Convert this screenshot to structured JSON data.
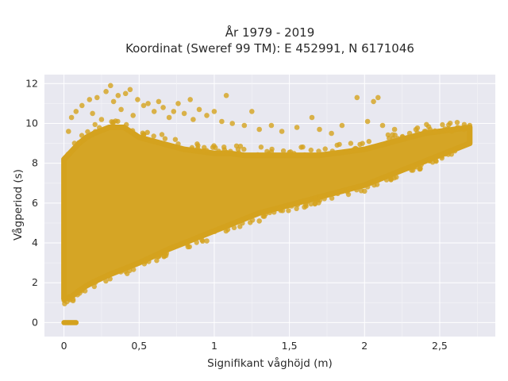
{
  "chart_data": {
    "type": "scatter",
    "title_lines": [
      "År 1979 - 2019",
      "Koordinat (Sweref 99 TM): E 452991, N 6171046"
    ],
    "xlabel": "Signifikant våghöjd (m)",
    "ylabel": "Vågperiod (s)",
    "xlim": [
      -0.13,
      2.87
    ],
    "ylim": [
      -0.7,
      12.45
    ],
    "x_ticks": [
      {
        "value": 0,
        "label": "0"
      },
      {
        "value": 0.5,
        "label": "0,5"
      },
      {
        "value": 1,
        "label": "1"
      },
      {
        "value": 1.5,
        "label": "1,5"
      },
      {
        "value": 2,
        "label": "2"
      },
      {
        "value": 2.5,
        "label": "2,5"
      }
    ],
    "y_ticks": [
      {
        "value": 0,
        "label": "0"
      },
      {
        "value": 2,
        "label": "2"
      },
      {
        "value": 4,
        "label": "4"
      },
      {
        "value": 6,
        "label": "6"
      },
      {
        "value": 8,
        "label": "8"
      },
      {
        "value": 10,
        "label": "10"
      },
      {
        "value": 12,
        "label": "12"
      }
    ],
    "grid": true,
    "marker_color": "#D4A21E",
    "plot_background": "#E8E8F0",
    "envelope": {
      "x": [
        0.0,
        0.05,
        0.1,
        0.15,
        0.2,
        0.3,
        0.4,
        0.5,
        0.6,
        0.7,
        0.8,
        0.9,
        1.0,
        1.1,
        1.2,
        1.3,
        1.4,
        1.5,
        1.6,
        1.7,
        1.8,
        1.9,
        2.0,
        2.1,
        2.2,
        2.3,
        2.4,
        2.5,
        2.6,
        2.7
      ],
      "y_lower": [
        1.2,
        1.3,
        1.6,
        1.85,
        2.05,
        2.4,
        2.7,
        3.0,
        3.35,
        3.7,
        4.0,
        4.3,
        4.6,
        4.9,
        5.2,
        5.5,
        5.7,
        5.9,
        6.1,
        6.3,
        6.5,
        6.7,
        6.9,
        7.2,
        7.5,
        7.8,
        8.1,
        8.4,
        8.7,
        9.0
      ],
      "y_upper": [
        8.2,
        8.6,
        9.0,
        9.3,
        9.5,
        9.8,
        9.8,
        9.3,
        9.1,
        8.9,
        8.7,
        8.6,
        8.5,
        8.5,
        8.4,
        8.4,
        8.4,
        8.4,
        8.4,
        8.4,
        8.5,
        8.6,
        8.7,
        8.9,
        9.1,
        9.3,
        9.5,
        9.6,
        9.7,
        9.8
      ]
    },
    "zero_period_points": {
      "x": [
        0.0,
        0.01,
        0.02,
        0.03,
        0.04,
        0.05,
        0.06,
        0.07,
        0.08
      ],
      "y": 0
    },
    "outliers": [
      {
        "x": 0.03,
        "y": 9.6
      },
      {
        "x": 0.05,
        "y": 10.3
      },
      {
        "x": 0.08,
        "y": 10.6
      },
      {
        "x": 0.12,
        "y": 10.9
      },
      {
        "x": 0.17,
        "y": 11.2
      },
      {
        "x": 0.19,
        "y": 10.5
      },
      {
        "x": 0.22,
        "y": 11.3
      },
      {
        "x": 0.25,
        "y": 10.2
      },
      {
        "x": 0.28,
        "y": 11.6
      },
      {
        "x": 0.31,
        "y": 11.9
      },
      {
        "x": 0.33,
        "y": 11.1
      },
      {
        "x": 0.36,
        "y": 11.4
      },
      {
        "x": 0.38,
        "y": 10.7
      },
      {
        "x": 0.41,
        "y": 11.5
      },
      {
        "x": 0.44,
        "y": 11.7
      },
      {
        "x": 0.46,
        "y": 10.4
      },
      {
        "x": 0.49,
        "y": 11.2
      },
      {
        "x": 0.53,
        "y": 10.9
      },
      {
        "x": 0.56,
        "y": 11.0
      },
      {
        "x": 0.6,
        "y": 10.6
      },
      {
        "x": 0.63,
        "y": 11.1
      },
      {
        "x": 0.66,
        "y": 10.8
      },
      {
        "x": 0.7,
        "y": 10.3
      },
      {
        "x": 0.73,
        "y": 10.6
      },
      {
        "x": 0.76,
        "y": 11.0
      },
      {
        "x": 0.8,
        "y": 10.5
      },
      {
        "x": 0.84,
        "y": 11.2
      },
      {
        "x": 0.86,
        "y": 10.2
      },
      {
        "x": 0.9,
        "y": 10.7
      },
      {
        "x": 0.95,
        "y": 10.4
      },
      {
        "x": 1.0,
        "y": 10.6
      },
      {
        "x": 1.05,
        "y": 10.1
      },
      {
        "x": 1.08,
        "y": 11.4
      },
      {
        "x": 1.12,
        "y": 10.0
      },
      {
        "x": 1.2,
        "y": 9.9
      },
      {
        "x": 1.25,
        "y": 10.6
      },
      {
        "x": 1.3,
        "y": 9.7
      },
      {
        "x": 1.38,
        "y": 9.9
      },
      {
        "x": 1.45,
        "y": 9.6
      },
      {
        "x": 1.55,
        "y": 9.8
      },
      {
        "x": 1.65,
        "y": 10.3
      },
      {
        "x": 1.7,
        "y": 9.7
      },
      {
        "x": 1.78,
        "y": 9.5
      },
      {
        "x": 1.85,
        "y": 9.9
      },
      {
        "x": 1.95,
        "y": 11.3
      },
      {
        "x": 2.02,
        "y": 10.1
      },
      {
        "x": 2.06,
        "y": 11.1
      },
      {
        "x": 2.09,
        "y": 11.3
      },
      {
        "x": 2.12,
        "y": 9.9
      },
      {
        "x": 2.2,
        "y": 9.7
      },
      {
        "x": 2.3,
        "y": 9.5
      },
      {
        "x": 2.4,
        "y": 9.6
      },
      {
        "x": 2.58,
        "y": 9.6
      },
      {
        "x": 2.62,
        "y": 9.8
      },
      {
        "x": 2.66,
        "y": 9.7
      },
      {
        "x": 2.7,
        "y": 9.9
      },
      {
        "x": 0.02,
        "y": 1.05
      },
      {
        "x": 0.04,
        "y": 1.15
      },
      {
        "x": 0.06,
        "y": 1.1
      },
      {
        "x": 0.09,
        "y": 1.4
      },
      {
        "x": 0.95,
        "y": 4.1
      },
      {
        "x": 1.3,
        "y": 5.1
      },
      {
        "x": 1.6,
        "y": 5.8
      },
      {
        "x": 2.0,
        "y": 6.6
      }
    ]
  }
}
